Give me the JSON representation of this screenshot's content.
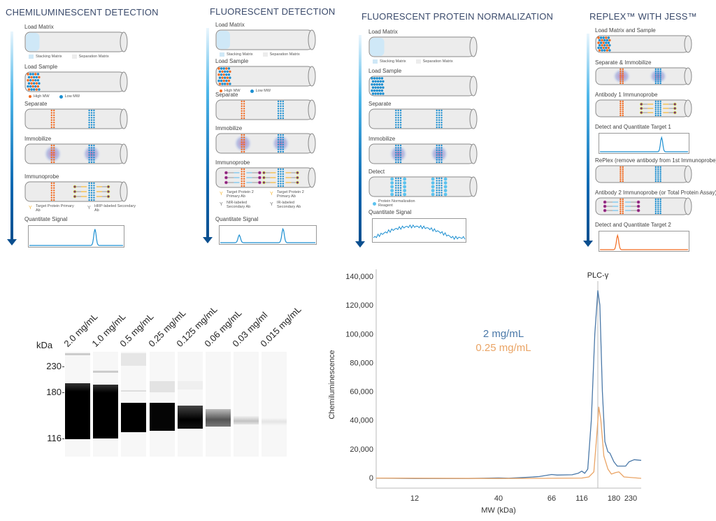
{
  "workflows": [
    {
      "title": "CHEMILUMINESCENT DETECTION",
      "steps": [
        {
          "label": "Load Matrix",
          "legend": [
            "Stacking Matrix",
            "Separation Matrix"
          ]
        },
        {
          "label": "Load Sample",
          "legend": [
            "High MW",
            "Low MW"
          ]
        },
        {
          "label": "Separate"
        },
        {
          "label": "Immobilize"
        },
        {
          "label": "Immunoprobe",
          "legend": [
            "Target Protein Primary Ab",
            "HRP-labeled Secondary Ab"
          ]
        },
        {
          "label": "Quantitate Signal"
        }
      ]
    },
    {
      "title": "FLUORESCENT DETECTION",
      "steps": [
        {
          "label": "Load Matrix",
          "legend": [
            "Stacking Matrix",
            "Separation Matrix"
          ]
        },
        {
          "label": "Load Sample",
          "legend": [
            "High MW",
            "Low MW"
          ]
        },
        {
          "label": "Separate"
        },
        {
          "label": "Immobilize"
        },
        {
          "label": "Immunoprobe",
          "legend": [
            "Target Protein 2 Primary Ab",
            "Target Protein 2 Primary Ab",
            "NIR-labeled Secondary Ab",
            "IR-labeled Secondary Ab"
          ]
        },
        {
          "label": "Quantitate Signal"
        }
      ]
    },
    {
      "title": "FLUORESCENT PROTEIN NORMALIZATION",
      "steps": [
        {
          "label": "Load Matrix",
          "legend": [
            "Stacking Matrix",
            "Separation Matrix"
          ]
        },
        {
          "label": "Load Sample"
        },
        {
          "label": "Separate"
        },
        {
          "label": "Immobilize"
        },
        {
          "label": "Detect",
          "legend": [
            "Protein Normalization Reagent"
          ]
        },
        {
          "label": "Quantitate Signal"
        }
      ]
    },
    {
      "title": "REPLEX™ WITH JESS™",
      "steps": [
        {
          "label": "Load Matrix and Sample"
        },
        {
          "label": "Separate & Immobilize"
        },
        {
          "label": "Antibody 1 Immunoprobe"
        },
        {
          "label": "Detect and Quantitate Target 1"
        },
        {
          "label": "RePlex (remove antibody from 1st Immunoprobe)"
        },
        {
          "label": "Antibody 2 Immunoprobe (or Total Protein Assay)"
        },
        {
          "label": "Detect and Quantitate Target 2"
        }
      ]
    }
  ],
  "colors": {
    "title": "#3a4a6b",
    "high_mw": "#f26b21",
    "low_mw": "#1c8fd1",
    "stacking_matrix": "#cfe8f7",
    "separation_matrix": "#ececec",
    "primary_ab": "#f6b733",
    "secondary_ab": "#7a2a7a"
  },
  "gel": {
    "unit_label": "kDa",
    "mw_markers": [
      "230",
      "180",
      "116"
    ],
    "lanes": [
      "2.0 mg/mL",
      "1.0 mg/mL",
      "0.5 mg/mL",
      "0.25 mg/mL",
      "0.125 mg/mL",
      "0.06 mg/mL",
      "0.03 mg/ml",
      "0.015 mg/mL"
    ]
  },
  "chart_data": {
    "type": "line",
    "xlabel": "MW (kDa)",
    "ylabel": "Chemiluminescence",
    "x_ticks": [
      "12",
      "40",
      "66",
      "116",
      "180",
      "230"
    ],
    "y_ticks": [
      "0",
      "20,000",
      "40,000",
      "60,000",
      "80,000",
      "100,000",
      "120,000",
      "140,000"
    ],
    "ylim": [
      0,
      140000
    ],
    "grid": false,
    "annotation": {
      "label": "PLC-γ",
      "x": 148
    },
    "series": [
      {
        "name": "2 mg/mL",
        "color": "#4a78a8",
        "points": [
          [
            5,
            -300
          ],
          [
            12,
            -600
          ],
          [
            30,
            -600
          ],
          [
            40,
            -200
          ],
          [
            45,
            -400
          ],
          [
            55,
            300
          ],
          [
            60,
            800
          ],
          [
            66,
            2200
          ],
          [
            75,
            1800
          ],
          [
            100,
            2000
          ],
          [
            110,
            3000
          ],
          [
            116,
            4500
          ],
          [
            122,
            3000
          ],
          [
            128,
            6000
          ],
          [
            135,
            40000
          ],
          [
            142,
            100000
          ],
          [
            148,
            130000
          ],
          [
            152,
            120000
          ],
          [
            157,
            60000
          ],
          [
            162,
            25000
          ],
          [
            168,
            18000
          ],
          [
            172,
            17000
          ],
          [
            180,
            11000
          ],
          [
            190,
            8000
          ],
          [
            215,
            8000
          ],
          [
            225,
            11000
          ],
          [
            240,
            12500
          ],
          [
            260,
            12000
          ]
        ]
      },
      {
        "name": "0.25 mg/mL",
        "color": "#eaa465",
        "points": [
          [
            5,
            -300
          ],
          [
            40,
            -600
          ],
          [
            60,
            -500
          ],
          [
            116,
            -300
          ],
          [
            130,
            500
          ],
          [
            140,
            4000
          ],
          [
            146,
            30000
          ],
          [
            150,
            49000
          ],
          [
            154,
            40000
          ],
          [
            160,
            15000
          ],
          [
            168,
            6000
          ],
          [
            175,
            2500
          ],
          [
            185,
            3500
          ],
          [
            195,
            4000
          ],
          [
            210,
            500
          ],
          [
            260,
            -500
          ]
        ]
      }
    ]
  }
}
